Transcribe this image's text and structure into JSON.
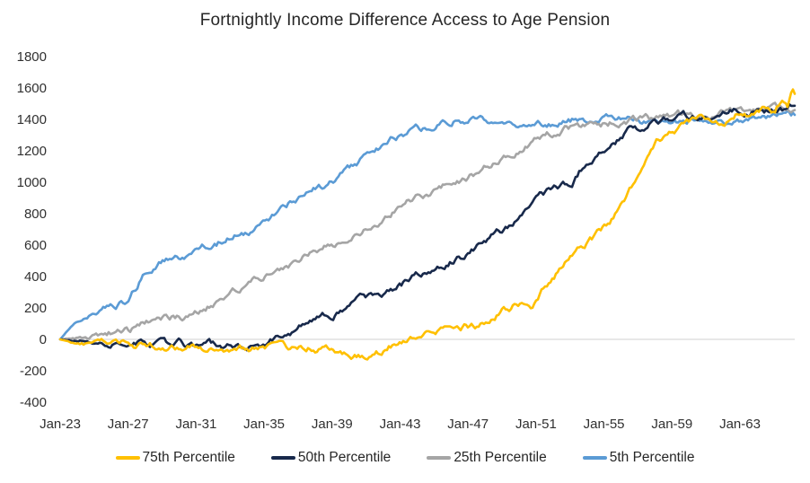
{
  "title": "Fortnightly Income Difference Access to Age Pension",
  "colors": {
    "background": "#ffffff",
    "text": "#262626",
    "zero_gridline": "#d9d9d9",
    "gold": "#FFC000",
    "navy": "#18294B",
    "gray": "#A5A5A5",
    "blue": "#5B9BD5"
  },
  "chart_data": {
    "type": "line",
    "title": "Fortnightly Income Difference Access to Age Pension",
    "xlabel": "",
    "ylabel": "",
    "grid": "zero-line-only",
    "y_axis": {
      "min": -400,
      "max": 1800,
      "step": 200,
      "ticks": [
        1800,
        1600,
        1400,
        1200,
        1000,
        800,
        600,
        400,
        200,
        0,
        -200,
        -400
      ]
    },
    "x_axis": {
      "start_year": 2023,
      "end_year": 2066.2,
      "tick_years": [
        2023,
        2027,
        2031,
        2035,
        2039,
        2043,
        2047,
        2051,
        2055,
        2059,
        2063
      ],
      "tick_labels": [
        "Jan-23",
        "Jan-27",
        "Jan-31",
        "Jan-35",
        "Jan-39",
        "Jan-43",
        "Jan-47",
        "Jan-51",
        "Jan-55",
        "Jan-59",
        "Jan-63"
      ]
    },
    "legend": {
      "position": "bottom",
      "entries": [
        "75th Percentile",
        "50th Percentile",
        "25th Percentile",
        "5th Percentile"
      ]
    },
    "series": [
      {
        "name": "75th Percentile",
        "color": "#FFC000",
        "anchors": [
          [
            2023,
            0
          ],
          [
            2024,
            -25
          ],
          [
            2025,
            -35
          ],
          [
            2026,
            -25
          ],
          [
            2027,
            -40
          ],
          [
            2028,
            -35
          ],
          [
            2029,
            -45
          ],
          [
            2030,
            -40
          ],
          [
            2031,
            -55
          ],
          [
            2032,
            -45
          ],
          [
            2033,
            -55
          ],
          [
            2034,
            -50
          ],
          [
            2035,
            -65
          ],
          [
            2036,
            -55
          ],
          [
            2037,
            -70
          ],
          [
            2038,
            -60
          ],
          [
            2039,
            -80
          ],
          [
            2040,
            -95
          ],
          [
            2041.2,
            -120
          ],
          [
            2042,
            -75
          ],
          [
            2043,
            -15
          ],
          [
            2043.6,
            25
          ],
          [
            2044.3,
            30
          ],
          [
            2045,
            45
          ],
          [
            2046,
            60
          ],
          [
            2047,
            80
          ],
          [
            2047.6,
            90
          ],
          [
            2048.3,
            130
          ],
          [
            2049,
            180
          ],
          [
            2050,
            235
          ],
          [
            2050.7,
            215
          ],
          [
            2051.6,
            350
          ],
          [
            2052.3,
            430
          ],
          [
            2053,
            540
          ],
          [
            2053.8,
            600
          ],
          [
            2054.4,
            645
          ],
          [
            2055.3,
            740
          ],
          [
            2056.5,
            960
          ],
          [
            2057.3,
            1090
          ],
          [
            2058,
            1250
          ],
          [
            2059,
            1330
          ],
          [
            2060.2,
            1405
          ],
          [
            2061,
            1420
          ],
          [
            2062,
            1400
          ],
          [
            2062.8,
            1440
          ],
          [
            2063.5,
            1420
          ],
          [
            2064.3,
            1450
          ],
          [
            2065,
            1430
          ],
          [
            2065.5,
            1530
          ],
          [
            2065.8,
            1470
          ],
          [
            2066.05,
            1580
          ],
          [
            2066.2,
            1555
          ]
        ]
      },
      {
        "name": "50th Percentile",
        "color": "#18294B",
        "anchors": [
          [
            2023,
            0
          ],
          [
            2024,
            -10
          ],
          [
            2025,
            -5
          ],
          [
            2026,
            -20
          ],
          [
            2027,
            -15
          ],
          [
            2028,
            -30
          ],
          [
            2029,
            -35
          ],
          [
            2030,
            -30
          ],
          [
            2031,
            -45
          ],
          [
            2032,
            -40
          ],
          [
            2033,
            -50
          ],
          [
            2034,
            -45
          ],
          [
            2035,
            -25
          ],
          [
            2036,
            25
          ],
          [
            2037.5,
            95
          ],
          [
            2039,
            160
          ],
          [
            2040,
            215
          ],
          [
            2041,
            260
          ],
          [
            2042.7,
            330
          ],
          [
            2044,
            400
          ],
          [
            2045,
            455
          ],
          [
            2046,
            500
          ],
          [
            2047.1,
            545
          ],
          [
            2048,
            620
          ],
          [
            2049.1,
            690
          ],
          [
            2050,
            790
          ],
          [
            2051.1,
            905
          ],
          [
            2052.2,
            975
          ],
          [
            2053.1,
            1000
          ],
          [
            2053.8,
            1105
          ],
          [
            2055,
            1230
          ],
          [
            2055.9,
            1275
          ],
          [
            2056.5,
            1345
          ],
          [
            2057.1,
            1315
          ],
          [
            2058,
            1380
          ],
          [
            2059,
            1420
          ],
          [
            2060,
            1415
          ],
          [
            2061,
            1440
          ],
          [
            2062,
            1445
          ],
          [
            2063,
            1450
          ],
          [
            2064,
            1460
          ],
          [
            2065,
            1455
          ],
          [
            2065.8,
            1470
          ],
          [
            2066.2,
            1500
          ]
        ]
      },
      {
        "name": "25th Percentile",
        "color": "#A5A5A5",
        "anchors": [
          [
            2023,
            0
          ],
          [
            2024,
            10
          ],
          [
            2025,
            20
          ],
          [
            2026,
            35
          ],
          [
            2027,
            50
          ],
          [
            2027.9,
            95
          ],
          [
            2029,
            130
          ],
          [
            2030,
            145
          ],
          [
            2031,
            165
          ],
          [
            2032.5,
            255
          ],
          [
            2034,
            330
          ],
          [
            2035,
            395
          ],
          [
            2036,
            445
          ],
          [
            2037,
            505
          ],
          [
            2038,
            550
          ],
          [
            2039,
            605
          ],
          [
            2040,
            655
          ],
          [
            2041.5,
            735
          ],
          [
            2042.7,
            830
          ],
          [
            2044,
            905
          ],
          [
            2045,
            950
          ],
          [
            2046.8,
            1020
          ],
          [
            2048,
            1090
          ],
          [
            2049.1,
            1145
          ],
          [
            2050,
            1200
          ],
          [
            2051.1,
            1275
          ],
          [
            2052.6,
            1345
          ],
          [
            2053.5,
            1360
          ],
          [
            2055,
            1375
          ],
          [
            2056,
            1390
          ],
          [
            2057,
            1400
          ],
          [
            2058,
            1400
          ],
          [
            2059,
            1420
          ],
          [
            2060,
            1430
          ],
          [
            2061,
            1430
          ],
          [
            2062,
            1455
          ],
          [
            2063,
            1465
          ],
          [
            2064,
            1445
          ],
          [
            2065,
            1465
          ],
          [
            2066.2,
            1470
          ]
        ]
      },
      {
        "name": "5th Percentile",
        "color": "#5B9BD5",
        "anchors": [
          [
            2023,
            0
          ],
          [
            2024,
            120
          ],
          [
            2025,
            170
          ],
          [
            2026,
            215
          ],
          [
            2027,
            255
          ],
          [
            2027.8,
            390
          ],
          [
            2028.7,
            490
          ],
          [
            2029.5,
            510
          ],
          [
            2030.3,
            520
          ],
          [
            2031,
            555
          ],
          [
            2032,
            600
          ],
          [
            2033,
            645
          ],
          [
            2034,
            690
          ],
          [
            2035,
            745
          ],
          [
            2036,
            830
          ],
          [
            2036.9,
            895
          ],
          [
            2038,
            950
          ],
          [
            2039.1,
            1000
          ],
          [
            2040,
            1075
          ],
          [
            2041,
            1160
          ],
          [
            2042,
            1240
          ],
          [
            2043,
            1300
          ],
          [
            2044.3,
            1335
          ],
          [
            2045.2,
            1390
          ],
          [
            2046,
            1400
          ],
          [
            2047.2,
            1410
          ],
          [
            2048,
            1385
          ],
          [
            2049.1,
            1370
          ],
          [
            2050,
            1385
          ],
          [
            2051,
            1375
          ],
          [
            2052,
            1390
          ],
          [
            2053,
            1395
          ],
          [
            2054,
            1390
          ],
          [
            2055,
            1400
          ],
          [
            2056,
            1395
          ],
          [
            2057,
            1390
          ],
          [
            2058,
            1385
          ],
          [
            2059,
            1380
          ],
          [
            2060,
            1395
          ],
          [
            2061,
            1380
          ],
          [
            2062,
            1400
          ],
          [
            2063,
            1395
          ],
          [
            2064,
            1410
          ],
          [
            2065,
            1400
          ],
          [
            2066.2,
            1430
          ]
        ]
      }
    ]
  }
}
